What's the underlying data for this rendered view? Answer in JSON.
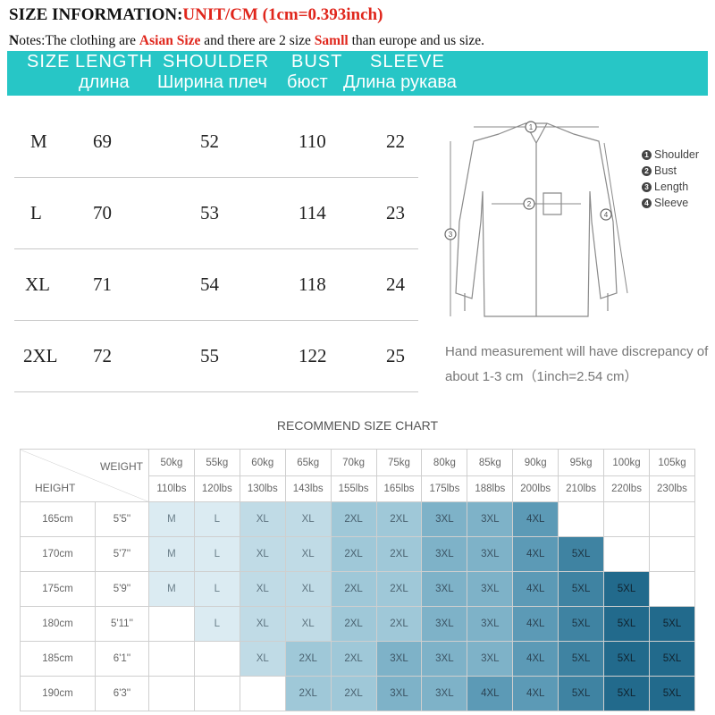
{
  "title": {
    "prefix": "SIZE INFORMATION:",
    "unit": "UNIT/CM  (1cm=0.393inch)"
  },
  "notes": {
    "lead": "N",
    "part1": "otes:The clothing are ",
    "highlight1": "Asian Size",
    "part2": " and there are 2 size ",
    "highlight2": "Samll",
    "part3": " than europe and us size."
  },
  "header": {
    "columns": [
      "SIZE",
      "LENGTH",
      "SHOULDER",
      "BUST",
      "SLEEVE"
    ],
    "russian": [
      "длина",
      "Ширина плеч",
      "бюст",
      "Длина рукава"
    ],
    "band_color": "#27c6c6"
  },
  "sizes": [
    {
      "size": "M",
      "length": "69",
      "shoulder": "52",
      "bust": "110",
      "sleeve": "22"
    },
    {
      "size": "L",
      "length": "70",
      "shoulder": "53",
      "bust": "114",
      "sleeve": "23"
    },
    {
      "size": "XL",
      "length": "71",
      "shoulder": "54",
      "bust": "118",
      "sleeve": "24"
    },
    {
      "size": "2XL",
      "length": "72",
      "shoulder": "55",
      "bust": "122",
      "sleeve": "25"
    }
  ],
  "diagram": {
    "legend": [
      {
        "num": "1",
        "label": "Shoulder"
      },
      {
        "num": "2",
        "label": "Bust"
      },
      {
        "num": "3",
        "label": "Length"
      },
      {
        "num": "4",
        "label": "Sleeve"
      }
    ],
    "note_line1": "Hand measurement will have discrepancy of",
    "note_line2": "about 1-3 cm（1inch=2.54 cm）"
  },
  "recommend": {
    "title": "RECOMMEND SIZE CHART",
    "weight_label": "WEIGHT",
    "height_label": "HEIGHT",
    "weights_kg": [
      "50kg",
      "55kg",
      "60kg",
      "65kg",
      "70kg",
      "75kg",
      "80kg",
      "85kg",
      "90kg",
      "95kg",
      "100kg",
      "105kg"
    ],
    "weights_lbs": [
      "110lbs",
      "120lbs",
      "130lbs",
      "143lbs",
      "155lbs",
      "165lbs",
      "175lbs",
      "188lbs",
      "200lbs",
      "210lbs",
      "220lbs",
      "230lbs"
    ],
    "rows": [
      {
        "cm": "165cm",
        "ft": "5'5''",
        "cells": [
          "M",
          "L",
          "XL",
          "XL",
          "2XL",
          "2XL",
          "3XL",
          "3XL",
          "4XL",
          "",
          "",
          ""
        ]
      },
      {
        "cm": "170cm",
        "ft": "5'7''",
        "cells": [
          "M",
          "L",
          "XL",
          "XL",
          "2XL",
          "2XL",
          "3XL",
          "3XL",
          "4XL",
          "5XL",
          "",
          ""
        ]
      },
      {
        "cm": "175cm",
        "ft": "5'9''",
        "cells": [
          "M",
          "L",
          "XL",
          "XL",
          "2XL",
          "2XL",
          "3XL",
          "3XL",
          "4XL",
          "5XL",
          "5XL",
          ""
        ]
      },
      {
        "cm": "180cm",
        "ft": "5'11''",
        "cells": [
          "",
          "L",
          "XL",
          "XL",
          "2XL",
          "2XL",
          "3XL",
          "3XL",
          "4XL",
          "5XL",
          "5XL",
          "5XL"
        ]
      },
      {
        "cm": "185cm",
        "ft": "6'1''",
        "cells": [
          "",
          "",
          "XL",
          "2XL",
          "2XL",
          "3XL",
          "3XL",
          "3XL",
          "4XL",
          "5XL",
          "5XL",
          "5XL"
        ]
      },
      {
        "cm": "190cm",
        "ft": "6'3''",
        "cells": [
          "",
          "",
          "",
          "2XL",
          "2XL",
          "3XL",
          "3XL",
          "4XL",
          "4XL",
          "5XL",
          "5XL",
          "5XL"
        ]
      }
    ]
  }
}
